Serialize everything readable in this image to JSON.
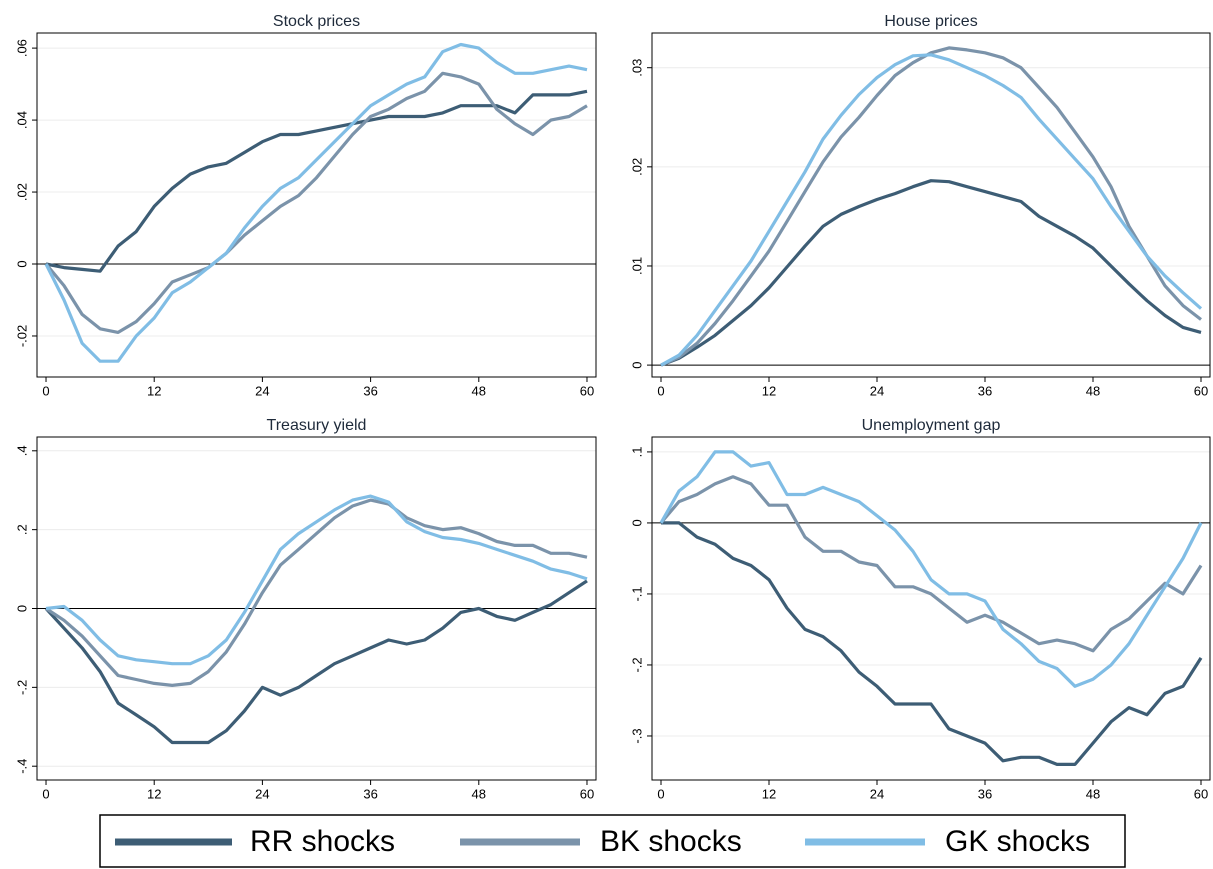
{
  "chart_data": [
    {
      "type": "line",
      "title": "Stock prices",
      "x": [
        0,
        2,
        4,
        6,
        8,
        10,
        12,
        14,
        16,
        18,
        20,
        22,
        24,
        26,
        28,
        30,
        32,
        34,
        36,
        38,
        40,
        42,
        44,
        46,
        48,
        50,
        52,
        54,
        56,
        58,
        60
      ],
      "xlim": [
        -1,
        61
      ],
      "xticks": [
        0,
        12,
        24,
        36,
        48,
        60
      ],
      "ylim": [
        -0.0314,
        0.0642
      ],
      "yticks": [
        {
          "value": -0.02,
          "label": "-.02"
        },
        0,
        {
          "value": 0.02,
          "label": ".02"
        },
        {
          "value": 0.04,
          "label": ".04"
        },
        {
          "value": 0.06,
          "label": ".06"
        }
      ],
      "grid": true,
      "hline": 0,
      "series": [
        {
          "name": "RR shocks",
          "color": "#3d5d75",
          "values": [
            0,
            -0.001,
            -0.0015,
            -0.002,
            0.005,
            0.009,
            0.016,
            0.021,
            0.025,
            0.027,
            0.028,
            0.031,
            0.034,
            0.036,
            0.036,
            0.037,
            0.038,
            0.039,
            0.04,
            0.041,
            0.041,
            0.041,
            0.042,
            0.044,
            0.044,
            0.044,
            0.042,
            0.047,
            0.047,
            0.047,
            0.048
          ]
        },
        {
          "name": "BK shocks",
          "color": "#7b93aa",
          "values": [
            0,
            -0.006,
            -0.014,
            -0.018,
            -0.019,
            -0.016,
            -0.011,
            -0.005,
            -0.003,
            -0.001,
            0.003,
            0.008,
            0.012,
            0.016,
            0.019,
            0.024,
            0.03,
            0.036,
            0.041,
            0.043,
            0.046,
            0.048,
            0.053,
            0.052,
            0.05,
            0.043,
            0.039,
            0.036,
            0.04,
            0.041,
            0.044
          ]
        },
        {
          "name": "GK shocks",
          "color": "#80bde5",
          "values": [
            0,
            -0.01,
            -0.022,
            -0.027,
            -0.027,
            -0.02,
            -0.015,
            -0.008,
            -0.005,
            -0.001,
            0.003,
            0.01,
            0.016,
            0.021,
            0.024,
            0.029,
            0.034,
            0.039,
            0.044,
            0.047,
            0.05,
            0.052,
            0.059,
            0.061,
            0.06,
            0.056,
            0.053,
            0.053,
            0.054,
            0.055,
            0.054
          ]
        }
      ]
    },
    {
      "type": "line",
      "title": "House prices",
      "x": [
        0,
        2,
        4,
        6,
        8,
        10,
        12,
        14,
        16,
        18,
        20,
        22,
        24,
        26,
        28,
        30,
        32,
        34,
        36,
        38,
        40,
        42,
        44,
        46,
        48,
        50,
        52,
        54,
        56,
        58,
        60
      ],
      "xlim": [
        -1,
        61
      ],
      "xticks": [
        0,
        12,
        24,
        36,
        48,
        60
      ],
      "ylim": [
        -0.0012,
        0.0335
      ],
      "yticks": [
        0,
        {
          "value": 0.01,
          "label": ".01"
        },
        {
          "value": 0.02,
          "label": ".02"
        },
        {
          "value": 0.03,
          "label": ".03"
        }
      ],
      "grid": true,
      "hline": 0,
      "series": [
        {
          "color": "#3d5d75",
          "values": [
            0,
            0.0007,
            0.0018,
            0.003,
            0.0045,
            0.006,
            0.0078,
            0.0099,
            0.012,
            0.014,
            0.0152,
            0.016,
            0.0167,
            0.0173,
            0.018,
            0.0186,
            0.0185,
            0.018,
            0.0175,
            0.017,
            0.0165,
            0.015,
            0.014,
            0.013,
            0.0118,
            0.01,
            0.0082,
            0.0065,
            0.005,
            0.0038,
            0.0033
          ]
        },
        {
          "color": "#7b93aa",
          "values": [
            0,
            0.0008,
            0.0022,
            0.0042,
            0.0065,
            0.009,
            0.0115,
            0.0145,
            0.0175,
            0.0205,
            0.023,
            0.025,
            0.0272,
            0.0292,
            0.0305,
            0.0315,
            0.032,
            0.0318,
            0.0315,
            0.031,
            0.03,
            0.028,
            0.026,
            0.0235,
            0.021,
            0.018,
            0.014,
            0.011,
            0.008,
            0.006,
            0.0046
          ]
        },
        {
          "color": "#80bde5",
          "values": [
            0,
            0.001,
            0.003,
            0.0055,
            0.008,
            0.0105,
            0.0135,
            0.0165,
            0.0195,
            0.0228,
            0.0252,
            0.0273,
            0.029,
            0.0303,
            0.0312,
            0.0313,
            0.0308,
            0.03,
            0.0292,
            0.0282,
            0.027,
            0.0248,
            0.0228,
            0.0208,
            0.0188,
            0.016,
            0.0135,
            0.011,
            0.009,
            0.0073,
            0.0057
          ]
        }
      ]
    },
    {
      "type": "line",
      "title": "Treasury yield",
      "x": [
        0,
        2,
        4,
        6,
        8,
        10,
        12,
        14,
        16,
        18,
        20,
        22,
        24,
        26,
        28,
        30,
        32,
        34,
        36,
        38,
        40,
        42,
        44,
        46,
        48,
        50,
        52,
        54,
        56,
        58,
        60
      ],
      "xlim": [
        -1,
        61
      ],
      "xticks": [
        0,
        12,
        24,
        36,
        48,
        60
      ],
      "ylim": [
        -0.435,
        0.435
      ],
      "yticks": [
        {
          "value": -0.4,
          "label": "-.4"
        },
        {
          "value": -0.2,
          "label": "-.2"
        },
        0,
        {
          "value": 0.2,
          "label": ".2"
        },
        {
          "value": 0.4,
          "label": ".4"
        }
      ],
      "grid": true,
      "hline": 0,
      "series": [
        {
          "color": "#3d5d75",
          "values": [
            0,
            -0.05,
            -0.1,
            -0.16,
            -0.24,
            -0.27,
            -0.3,
            -0.34,
            -0.34,
            -0.34,
            -0.31,
            -0.26,
            -0.2,
            -0.22,
            -0.2,
            -0.17,
            -0.14,
            -0.12,
            -0.1,
            -0.08,
            -0.09,
            -0.08,
            -0.05,
            -0.01,
            0,
            -0.02,
            -0.03,
            -0.01,
            0.01,
            0.04,
            0.07
          ]
        },
        {
          "color": "#7b93aa",
          "values": [
            0,
            -0.03,
            -0.07,
            -0.12,
            -0.17,
            -0.18,
            -0.19,
            -0.195,
            -0.19,
            -0.16,
            -0.11,
            -0.04,
            0.04,
            0.11,
            0.15,
            0.19,
            0.23,
            0.26,
            0.275,
            0.265,
            0.23,
            0.21,
            0.2,
            0.205,
            0.19,
            0.17,
            0.16,
            0.16,
            0.14,
            0.14,
            0.13
          ]
        },
        {
          "color": "#80bde5",
          "values": [
            0,
            0.005,
            -0.03,
            -0.08,
            -0.12,
            -0.13,
            -0.135,
            -0.14,
            -0.14,
            -0.12,
            -0.08,
            -0.01,
            0.07,
            0.15,
            0.19,
            0.22,
            0.25,
            0.275,
            0.285,
            0.27,
            0.22,
            0.195,
            0.18,
            0.175,
            0.165,
            0.15,
            0.135,
            0.12,
            0.1,
            0.09,
            0.075
          ]
        }
      ]
    },
    {
      "type": "line",
      "title": "Unemployment gap",
      "x": [
        0,
        2,
        4,
        6,
        8,
        10,
        12,
        14,
        16,
        18,
        20,
        22,
        24,
        26,
        28,
        30,
        32,
        34,
        36,
        38,
        40,
        42,
        44,
        46,
        48,
        50,
        52,
        54,
        56,
        58,
        60
      ],
      "xlim": [
        -1,
        61
      ],
      "xticks": [
        0,
        12,
        24,
        36,
        48,
        60
      ],
      "ylim": [
        -0.362,
        0.121
      ],
      "yticks": [
        {
          "value": -0.3,
          "label": "-.3"
        },
        {
          "value": -0.2,
          "label": "-.2"
        },
        {
          "value": -0.1,
          "label": "-.1"
        },
        0,
        {
          "value": 0.1,
          "label": ".1"
        }
      ],
      "grid": true,
      "hline": 0,
      "series": [
        {
          "color": "#3d5d75",
          "values": [
            0,
            0,
            -0.02,
            -0.03,
            -0.05,
            -0.06,
            -0.08,
            -0.12,
            -0.15,
            -0.16,
            -0.18,
            -0.21,
            -0.23,
            -0.255,
            -0.255,
            -0.255,
            -0.29,
            -0.3,
            -0.31,
            -0.335,
            -0.33,
            -0.33,
            -0.34,
            -0.34,
            -0.31,
            -0.28,
            -0.26,
            -0.27,
            -0.24,
            -0.23,
            -0.19
          ]
        },
        {
          "color": "#7b93aa",
          "values": [
            0,
            0.03,
            0.04,
            0.055,
            0.065,
            0.055,
            0.025,
            0.025,
            -0.02,
            -0.04,
            -0.04,
            -0.055,
            -0.06,
            -0.09,
            -0.09,
            -0.1,
            -0.12,
            -0.14,
            -0.13,
            -0.14,
            -0.155,
            -0.17,
            -0.165,
            -0.17,
            -0.18,
            -0.15,
            -0.135,
            -0.11,
            -0.085,
            -0.1,
            -0.06
          ]
        },
        {
          "color": "#80bde5",
          "values": [
            0,
            0.045,
            0.065,
            0.1,
            0.1,
            0.08,
            0.085,
            0.04,
            0.04,
            0.05,
            0.04,
            0.03,
            0.01,
            -0.01,
            -0.04,
            -0.08,
            -0.1,
            -0.1,
            -0.11,
            -0.15,
            -0.17,
            -0.195,
            -0.205,
            -0.23,
            -0.22,
            -0.2,
            -0.17,
            -0.13,
            -0.09,
            -0.05,
            0
          ]
        }
      ]
    }
  ]
}
